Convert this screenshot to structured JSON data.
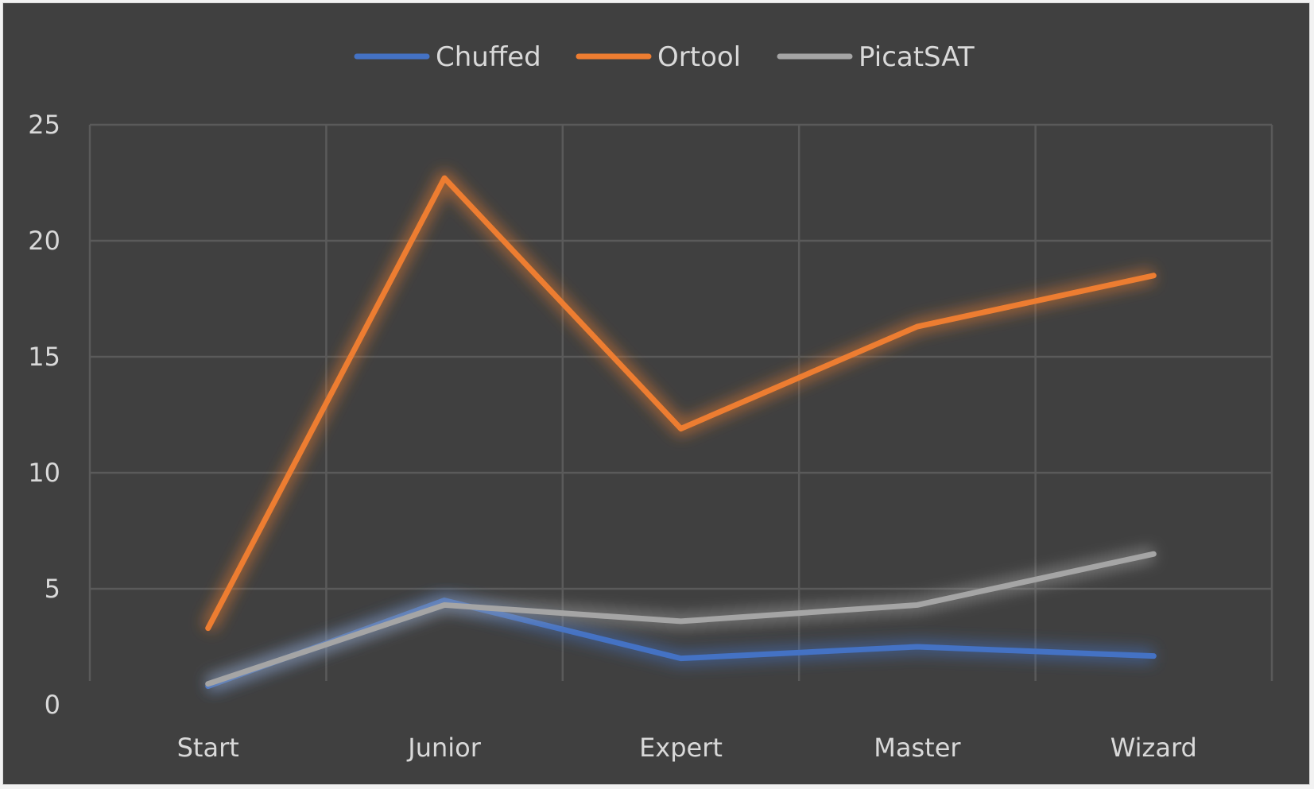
{
  "chart_data": {
    "type": "line",
    "categories": [
      "Start",
      "Junior",
      "Expert",
      "Master",
      "Wizard"
    ],
    "series": [
      {
        "name": "Chuffed",
        "color": "#4472c4",
        "values": [
          0.8,
          4.5,
          2.0,
          2.5,
          2.1
        ]
      },
      {
        "name": "Ortool",
        "color": "#ed7d31",
        "values": [
          3.3,
          22.7,
          11.9,
          16.3,
          18.5
        ]
      },
      {
        "name": "PicatSAT",
        "color": "#a5a5a5",
        "values": [
          0.9,
          4.3,
          3.6,
          4.3,
          6.5
        ]
      }
    ],
    "yticks": [
      0,
      5,
      10,
      15,
      20,
      25
    ],
    "ylim": [
      0,
      25
    ],
    "grid": true,
    "legend": "top-center",
    "title": "",
    "xlabel": "",
    "ylabel": ""
  }
}
